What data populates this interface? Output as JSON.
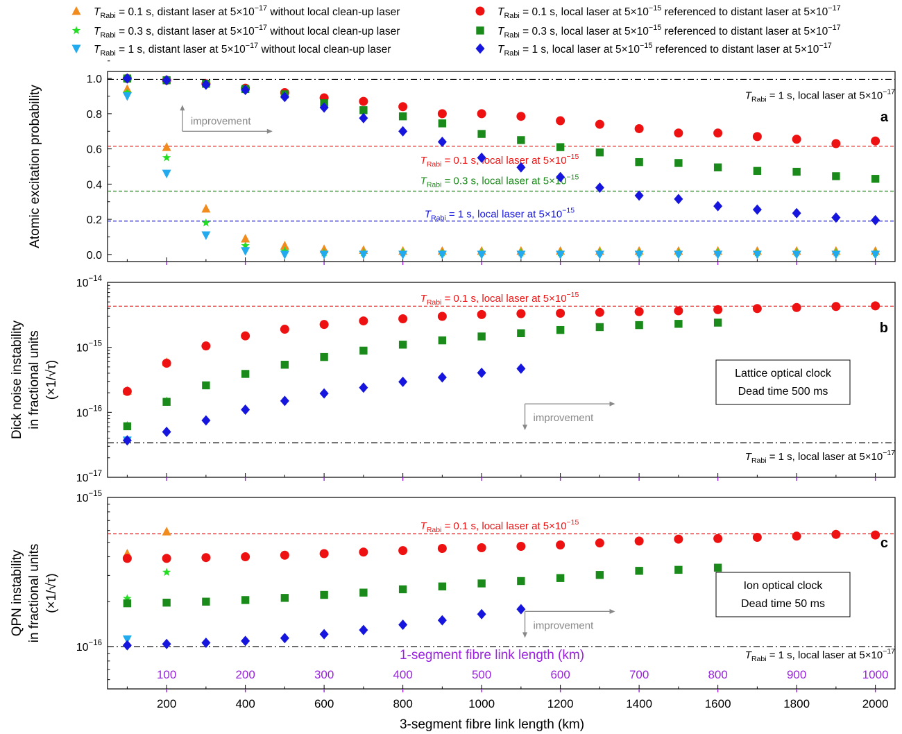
{
  "figure": {
    "xlabel": "3-segment fibre link length (km)",
    "xlabel_top": "1-segment fibre link length (km)",
    "x_ticks": [
      200,
      400,
      600,
      800,
      1000,
      1200,
      1400,
      1600,
      1800,
      2000
    ],
    "x_ticks_top": [
      100,
      200,
      300,
      400,
      500,
      600,
      700,
      800,
      900,
      1000
    ],
    "improvement_label": "improvement",
    "sub_rabi": "Rabi",
    "colors": {
      "orange": "#f28b1e",
      "green_star": "#22dd22",
      "cyan": "#22aaee",
      "red": "#ee1111",
      "green": "#1a8a1a",
      "blue": "#1515dd",
      "purple": "#9922dd",
      "grey": "#888888"
    }
  },
  "legend": [
    {
      "T": "T",
      "sub": "Rabi",
      "text": " = 0.1 s, distant laser at 5×10",
      "exp": "−17",
      "tail": " without local clean-up laser",
      "marker": "triangle-up",
      "color": "#f28b1e"
    },
    {
      "T": "T",
      "sub": "Rabi",
      "text": " = 0.3 s, distant laser at 5×10",
      "exp": "−17",
      "tail": " without local clean-up laser",
      "marker": "star",
      "color": "#22dd22"
    },
    {
      "T": "T",
      "sub": "Rabi",
      "text": " = 1 s, distant laser at 5×10",
      "exp": "−17",
      "tail": " without local clean-up laser",
      "marker": "triangle-down",
      "color": "#22aaee"
    },
    {
      "T": "T",
      "sub": "Rabi",
      "text": " = 0.1 s, local laser at 5×10",
      "exp": "−15",
      "tail": " referenced to distant laser at 5×10",
      "exp2": "−17",
      "marker": "circle",
      "color": "#ee1111"
    },
    {
      "T": "T",
      "sub": "Rabi",
      "text": " = 0.3 s, local laser at 5×10",
      "exp": "−15",
      "tail": " referenced to distant laser at 5×10",
      "exp2": "−17",
      "marker": "square",
      "color": "#1a8a1a"
    },
    {
      "T": "T",
      "sub": "Rabi",
      "text": " = 1 s, local laser at 5×10",
      "exp": "−15",
      "tail": " referenced to distant laser at 5×10",
      "exp2": "−17",
      "marker": "diamond",
      "color": "#1515dd"
    }
  ],
  "chart_data": [
    {
      "type": "scatter",
      "panel": "a",
      "ylabel": "Atomic excitation probability",
      "ylim": [
        -0.04,
        1.04
      ],
      "yscale": "linear",
      "y_ticks": [
        "0.0",
        "0.2",
        "0.4",
        "0.6",
        "0.8",
        "1.0"
      ],
      "x": [
        100,
        200,
        300,
        400,
        500,
        600,
        700,
        800,
        900,
        1000,
        1100,
        1200,
        1300,
        1400,
        1500,
        1600,
        1700,
        1800,
        1900,
        2000
      ],
      "series": [
        {
          "marker": "circle",
          "color": "#ee1111",
          "values": [
            1.0,
            0.99,
            0.97,
            0.945,
            0.92,
            0.89,
            0.87,
            0.84,
            0.8,
            0.8,
            0.785,
            0.76,
            0.74,
            0.715,
            0.69,
            0.69,
            0.67,
            0.655,
            0.63,
            0.645
          ]
        },
        {
          "marker": "square",
          "color": "#1a8a1a",
          "values": [
            1.0,
            0.99,
            0.97,
            0.94,
            0.91,
            0.86,
            0.82,
            0.785,
            0.745,
            0.685,
            0.65,
            0.61,
            0.58,
            0.525,
            0.52,
            0.495,
            0.475,
            0.47,
            0.445,
            0.43
          ]
        },
        {
          "marker": "diamond",
          "color": "#1515dd",
          "values": [
            1.0,
            0.99,
            0.965,
            0.935,
            0.895,
            0.835,
            0.775,
            0.7,
            0.64,
            0.55,
            0.495,
            0.44,
            0.38,
            0.335,
            0.315,
            0.275,
            0.255,
            0.235,
            0.21,
            0.195
          ]
        },
        {
          "marker": "triangle-up",
          "color": "#f28b1e",
          "values": [
            0.94,
            0.61,
            0.26,
            0.09,
            0.05,
            0.03,
            0.025,
            0.02,
            0.02,
            0.02,
            0.02,
            0.02,
            0.02,
            0.02,
            0.02,
            0.02,
            0.02,
            0.02,
            0.02,
            0.02
          ]
        },
        {
          "marker": "star",
          "color": "#22dd22",
          "values": [
            0.92,
            0.55,
            0.18,
            0.05,
            0.02,
            0.01,
            0.01,
            0.01,
            0.01,
            0.01,
            0.01,
            0.01,
            0.01,
            0.01,
            0.01,
            0.01,
            0.01,
            0.01,
            0.01,
            0.01
          ]
        },
        {
          "marker": "triangle-down",
          "color": "#22aaee",
          "values": [
            0.9,
            0.46,
            0.11,
            0.02,
            0.0,
            0.0,
            0.0,
            0.0,
            0.0,
            0.0,
            0.0,
            0.0,
            0.0,
            0.0,
            0.0,
            0.0,
            0.0,
            0.0,
            0.0,
            0.0
          ]
        }
      ],
      "hlines": [
        {
          "y": 0.995,
          "style": "dashdot",
          "color": "#000000",
          "T": "T",
          "sub": "Rabi",
          "text": " = 1 s, local laser at 5×10",
          "exp": "−17",
          "label_x": 1290,
          "anchor": "end",
          "label_y": 0.905
        },
        {
          "y": 0.615,
          "style": "dashed",
          "color": "#ee1111",
          "T": "T",
          "sub": "Rabi",
          "text": " = 0.1 s, local laser at 5×10",
          "exp": "−15",
          "label_x": 720,
          "anchor": "middle",
          "label_y": 0.535
        },
        {
          "y": 0.36,
          "style": "dashed",
          "color": "#1a8a1a",
          "T": "T",
          "sub": "Rabi",
          "text": " = 0.3 s, local laser at 5×10",
          "exp": "−15",
          "label_x": 720,
          "anchor": "middle",
          "label_y": 0.42
        },
        {
          "y": 0.19,
          "style": "dashed",
          "color": "#1515dd",
          "T": "T",
          "sub": "Rabi",
          "text": " = 1 s, local laser at 5×10",
          "exp": "−15",
          "label_x": 720,
          "anchor": "middle",
          "label_y": 0.23
        }
      ],
      "panel_label": "a",
      "improvement": {
        "x": 240,
        "y": 0.7
      }
    },
    {
      "type": "scatter",
      "panel": "b",
      "ylabel": [
        "Dick noise instability",
        "in fractional units",
        "(×1/√τ)"
      ],
      "yscale": "log",
      "ylim": [
        1e-17,
        1e-14
      ],
      "y_ticks": [
        {
          "base": "10",
          "exp": "−17",
          "v": 1e-17
        },
        {
          "base": "10",
          "exp": "−16",
          "v": 1e-16
        },
        {
          "base": "10",
          "exp": "−15",
          "v": 1e-15
        },
        {
          "base": "10",
          "exp": "−14",
          "v": 1e-14
        }
      ],
      "x": [
        100,
        200,
        300,
        400,
        500,
        600,
        700,
        800,
        900,
        1000,
        1100,
        1200,
        1300,
        1400,
        1500,
        1600,
        1700,
        1800,
        1900,
        2000
      ],
      "series": [
        {
          "marker": "triangle-up",
          "color": "#f28b1e",
          "values": [
            2.15e-16,
            5.9e-16
          ]
        },
        {
          "marker": "star",
          "color": "#22dd22",
          "values": [
            6.3e-17,
            1.5e-16
          ]
        },
        {
          "marker": "triangle-down",
          "color": "#22aaee",
          "values": [
            3.7e-17
          ]
        },
        {
          "marker": "circle",
          "color": "#ee1111",
          "values": [
            2.1e-16,
            5.7e-16,
            1.05e-15,
            1.5e-15,
            1.9e-15,
            2.25e-15,
            2.55e-15,
            2.75e-15,
            3e-15,
            3.2e-15,
            3.3e-15,
            3.35e-15,
            3.45e-15,
            3.55e-15,
            3.65e-15,
            3.8e-15,
            3.95e-15,
            4.1e-15,
            4.25e-15,
            4.35e-15
          ]
        },
        {
          "marker": "square",
          "color": "#1a8a1a",
          "values": [
            6.1e-17,
            1.45e-16,
            2.6e-16,
            3.9e-16,
            5.4e-16,
            7.1e-16,
            8.9e-16,
            1.1e-15,
            1.28e-15,
            1.47e-15,
            1.65e-15,
            1.85e-15,
            2.05e-15,
            2.2e-15,
            2.3e-15,
            2.4e-15
          ]
        },
        {
          "marker": "diamond",
          "color": "#1515dd",
          "values": [
            3.7e-17,
            5e-17,
            7.5e-17,
            1.1e-16,
            1.5e-16,
            1.95e-16,
            2.4e-16,
            2.95e-16,
            3.45e-16,
            4.05e-16,
            4.7e-16
          ]
        }
      ],
      "hlines": [
        {
          "y": 4.3e-15,
          "style": "dashed",
          "color": "#ee1111",
          "T": "T",
          "sub": "Rabi",
          "text": " = 0.1 s, local laser at 5×10",
          "exp": "−15",
          "label_x": 720,
          "anchor": "middle",
          "label_y": 5.7e-15
        },
        {
          "y": 3.4e-17,
          "style": "dashdot",
          "color": "#000000",
          "T": "T",
          "sub": "Rabi",
          "text": " = 1 s, local laser at 5×10",
          "exp": "−17",
          "label_x": 1290,
          "anchor": "end",
          "label_y": 2.1e-17
        }
      ],
      "panel_label": "b",
      "box": [
        "Lattice optical clock",
        "Dead time 500 ms"
      ],
      "improvement": {
        "x": 1110,
        "y": 1.35e-16
      }
    },
    {
      "type": "scatter",
      "panel": "c",
      "ylabel": [
        "QPN instability",
        "in fractional units",
        "(×1/√τ)"
      ],
      "yscale": "log",
      "ylim": [
        5.2e-17,
        1e-15
      ],
      "y_ticks": [
        {
          "base": "10",
          "exp": "−16",
          "v": 1e-16
        },
        {
          "base": "10",
          "exp": "−15",
          "v": 1e-15
        }
      ],
      "x": [
        100,
        200,
        300,
        400,
        500,
        600,
        700,
        800,
        900,
        1000,
        1100,
        1200,
        1300,
        1400,
        1500,
        1600,
        1700,
        1800,
        1900,
        2000
      ],
      "series": [
        {
          "marker": "triangle-up",
          "color": "#f28b1e",
          "values": [
            4.2e-16,
            5.9e-16
          ]
        },
        {
          "marker": "star",
          "color": "#22dd22",
          "values": [
            2.1e-16,
            3.15e-16
          ]
        },
        {
          "marker": "triangle-down",
          "color": "#22aaee",
          "values": [
            1.12e-16
          ]
        },
        {
          "marker": "circle",
          "color": "#ee1111",
          "values": [
            3.9e-16,
            3.9e-16,
            3.95e-16,
            4e-16,
            4.1e-16,
            4.2e-16,
            4.3e-16,
            4.4e-16,
            4.55e-16,
            4.6e-16,
            4.7e-16,
            4.8e-16,
            4.95e-16,
            5.1e-16,
            5.25e-16,
            5.3e-16,
            5.4e-16,
            5.5e-16,
            5.65e-16,
            5.6e-16
          ]
        },
        {
          "marker": "square",
          "color": "#1a8a1a",
          "values": [
            1.95e-16,
            1.97e-16,
            2e-16,
            2.05e-16,
            2.12e-16,
            2.22e-16,
            2.3e-16,
            2.42e-16,
            2.53e-16,
            2.65e-16,
            2.75e-16,
            2.88e-16,
            3.02e-16,
            3.22e-16,
            3.27e-16,
            3.38e-16
          ]
        },
        {
          "marker": "diamond",
          "color": "#1515dd",
          "values": [
            1.02e-16,
            1.04e-16,
            1.06e-16,
            1.09e-16,
            1.14e-16,
            1.21e-16,
            1.29e-16,
            1.4e-16,
            1.5e-16,
            1.65e-16,
            1.78e-16
          ]
        }
      ],
      "hlines": [
        {
          "y": 5.7e-16,
          "style": "dashed",
          "color": "#ee1111",
          "T": "T",
          "sub": "Rabi",
          "text": " = 0.1 s, local laser at 5×10",
          "exp": "−15",
          "label_x": 720,
          "anchor": "middle",
          "label_y": 6.45e-16
        },
        {
          "y": 1e-16,
          "style": "dashdot",
          "color": "#000000",
          "T": "T",
          "sub": "Rabi",
          "text": " = 1 s, local laser at 5×10",
          "exp": "−17",
          "label_x": 1290,
          "anchor": "end",
          "label_y": 8.8e-17
        }
      ],
      "panel_label": "c",
      "box": [
        "Ion optical clock",
        "Dead time 50 ms"
      ],
      "improvement": {
        "x": 1110,
        "y": 1.72e-16
      }
    }
  ]
}
